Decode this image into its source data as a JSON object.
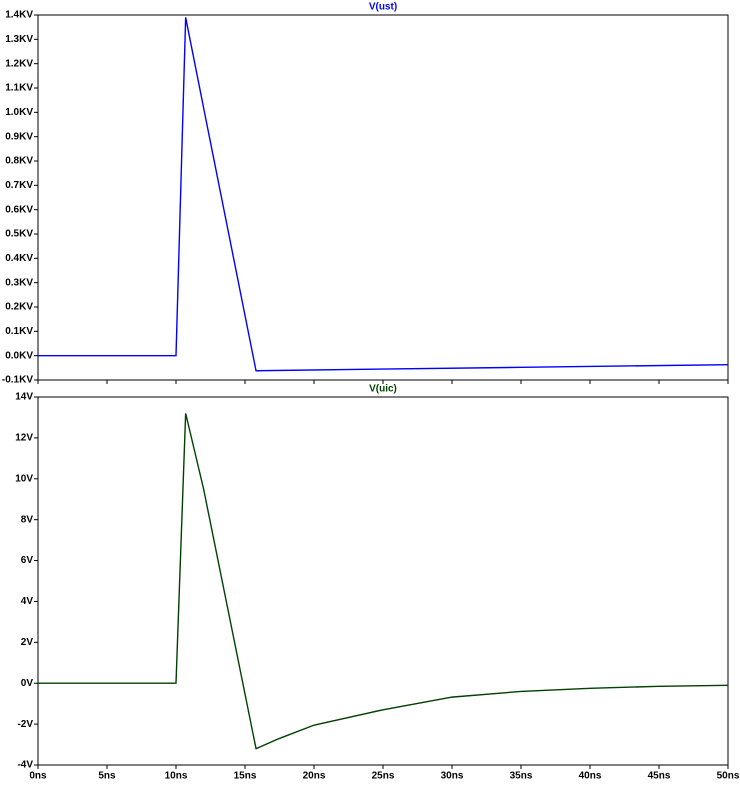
{
  "chart_data": [
    {
      "type": "line",
      "x": [
        0,
        10,
        10.7,
        12.1,
        15.8,
        25,
        35,
        50
      ],
      "series": [
        {
          "name": "V(ust)",
          "color": "#0000ff",
          "values": [
            0,
            0,
            1.39,
            0.99,
            -0.062,
            -0.055,
            -0.048,
            -0.037
          ]
        }
      ],
      "xlim": [
        0,
        50
      ],
      "ylim": [
        -0.1,
        1.4
      ],
      "yticks": [
        {
          "value": -0.1,
          "label": "-0.1KV"
        },
        {
          "value": 0,
          "label": "0.0KV"
        },
        {
          "value": 0.1,
          "label": "0.1KV"
        },
        {
          "value": 0.2,
          "label": "0.2KV"
        },
        {
          "value": 0.3,
          "label": "0.3KV"
        },
        {
          "value": 0.4,
          "label": "0.4KV"
        },
        {
          "value": 0.5,
          "label": "0.5KV"
        },
        {
          "value": 0.6,
          "label": "0.6KV"
        },
        {
          "value": 0.7,
          "label": "0.7KV"
        },
        {
          "value": 0.8,
          "label": "0.8KV"
        },
        {
          "value": 0.9,
          "label": "0.9KV"
        },
        {
          "value": 1.0,
          "label": "1.0KV"
        },
        {
          "value": 1.1,
          "label": "1.1KV"
        },
        {
          "value": 1.2,
          "label": "1.2KV"
        },
        {
          "value": 1.3,
          "label": "1.3KV"
        },
        {
          "value": 1.4,
          "label": "1.4KV"
        }
      ]
    },
    {
      "type": "line",
      "x": [
        0,
        10,
        10.7,
        12,
        15.8,
        17.5,
        20,
        25,
        30,
        35,
        40,
        45,
        50
      ],
      "series": [
        {
          "name": "V(uic)",
          "color": "#004000",
          "values": [
            0,
            0,
            13.2,
            9.5,
            -3.2,
            -2.7,
            -2.05,
            -1.3,
            -0.68,
            -0.4,
            -0.25,
            -0.15,
            -0.1
          ]
        }
      ],
      "xlim": [
        0,
        50
      ],
      "ylim": [
        -4,
        14
      ],
      "yticks": [
        {
          "value": -4,
          "label": "-4V"
        },
        {
          "value": -2,
          "label": "-2V"
        },
        {
          "value": 0,
          "label": "0V"
        },
        {
          "value": 2,
          "label": "2V"
        },
        {
          "value": 4,
          "label": "4V"
        },
        {
          "value": 6,
          "label": "6V"
        },
        {
          "value": 8,
          "label": "8V"
        },
        {
          "value": 10,
          "label": "10V"
        },
        {
          "value": 12,
          "label": "12V"
        },
        {
          "value": 14,
          "label": "14V"
        }
      ],
      "xticks": [
        {
          "value": 0,
          "label": "0ns"
        },
        {
          "value": 5,
          "label": "5ns"
        },
        {
          "value": 10,
          "label": "10ns"
        },
        {
          "value": 15,
          "label": "15ns"
        },
        {
          "value": 20,
          "label": "20ns"
        },
        {
          "value": 25,
          "label": "25ns"
        },
        {
          "value": 30,
          "label": "30ns"
        },
        {
          "value": 35,
          "label": "35ns"
        },
        {
          "value": 40,
          "label": "40ns"
        },
        {
          "value": 45,
          "label": "45ns"
        },
        {
          "value": 50,
          "label": "50ns"
        }
      ]
    }
  ]
}
